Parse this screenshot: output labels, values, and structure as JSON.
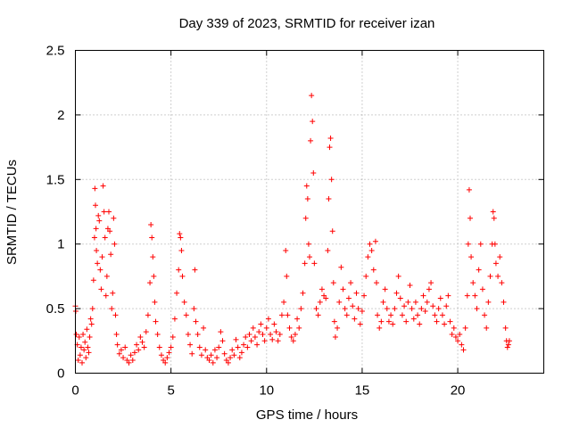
{
  "chart_data": {
    "type": "scatter",
    "title": "Day 339 of 2023, SRMTID for receiver izan",
    "xlabel": "GPS time / hours",
    "ylabel": "SRMTID / TECUs",
    "xlim": [
      0,
      24.5
    ],
    "ylim": [
      0,
      2.5
    ],
    "x_ticks": [
      0,
      5,
      10,
      15,
      20
    ],
    "x_tick_labels": [
      "0",
      "5",
      "10",
      "15",
      "20"
    ],
    "y_ticks": [
      0,
      0.5,
      1,
      1.5,
      2,
      2.5
    ],
    "y_tick_labels": [
      "0",
      "0.5",
      "1",
      "1.5",
      "2",
      "2.5"
    ],
    "grid": true,
    "marker": "+",
    "color": "#ff0000",
    "series": [
      {
        "name": "SRMTID",
        "points": [
          [
            0.0,
            0.52
          ],
          [
            0.02,
            0.48
          ],
          [
            0.05,
            0.3
          ],
          [
            0.1,
            0.22
          ],
          [
            0.15,
            0.1
          ],
          [
            0.2,
            0.28
          ],
          [
            0.25,
            0.14
          ],
          [
            0.3,
            0.2
          ],
          [
            0.35,
            0.08
          ],
          [
            0.4,
            0.3
          ],
          [
            0.45,
            0.18
          ],
          [
            0.5,
            0.24
          ],
          [
            0.55,
            0.12
          ],
          [
            0.6,
            0.34
          ],
          [
            0.65,
            0.2
          ],
          [
            0.7,
            0.16
          ],
          [
            0.75,
            0.28
          ],
          [
            0.8,
            0.42
          ],
          [
            0.85,
            0.38
          ],
          [
            0.9,
            0.5
          ],
          [
            0.95,
            0.72
          ],
          [
            1.0,
            1.05
          ],
          [
            1.02,
            1.43
          ],
          [
            1.05,
            1.3
          ],
          [
            1.08,
            1.12
          ],
          [
            1.1,
            0.95
          ],
          [
            1.15,
            0.85
          ],
          [
            1.2,
            1.22
          ],
          [
            1.25,
            1.18
          ],
          [
            1.3,
            0.8
          ],
          [
            1.35,
            0.65
          ],
          [
            1.4,
            0.9
          ],
          [
            1.45,
            1.45
          ],
          [
            1.5,
            1.25
          ],
          [
            1.55,
            1.05
          ],
          [
            1.6,
            0.6
          ],
          [
            1.65,
            0.75
          ],
          [
            1.7,
            1.12
          ],
          [
            1.75,
            1.25
          ],
          [
            1.8,
            1.1
          ],
          [
            1.85,
            0.92
          ],
          [
            1.9,
            0.5
          ],
          [
            1.95,
            0.62
          ],
          [
            2.0,
            1.2
          ],
          [
            2.05,
            1.0
          ],
          [
            2.1,
            0.45
          ],
          [
            2.15,
            0.3
          ],
          [
            2.2,
            0.22
          ],
          [
            2.3,
            0.15
          ],
          [
            2.4,
            0.18
          ],
          [
            2.5,
            0.12
          ],
          [
            2.6,
            0.2
          ],
          [
            2.7,
            0.1
          ],
          [
            2.8,
            0.08
          ],
          [
            2.9,
            0.14
          ],
          [
            3.0,
            0.1
          ],
          [
            3.1,
            0.16
          ],
          [
            3.2,
            0.22
          ],
          [
            3.3,
            0.18
          ],
          [
            3.4,
            0.28
          ],
          [
            3.5,
            0.24
          ],
          [
            3.6,
            0.2
          ],
          [
            3.7,
            0.32
          ],
          [
            3.8,
            0.45
          ],
          [
            3.9,
            0.7
          ],
          [
            3.95,
            1.15
          ],
          [
            4.0,
            1.05
          ],
          [
            4.05,
            0.9
          ],
          [
            4.1,
            0.75
          ],
          [
            4.15,
            0.55
          ],
          [
            4.2,
            0.4
          ],
          [
            4.3,
            0.3
          ],
          [
            4.4,
            0.2
          ],
          [
            4.5,
            0.14
          ],
          [
            4.6,
            0.1
          ],
          [
            4.7,
            0.08
          ],
          [
            4.8,
            0.12
          ],
          [
            4.9,
            0.16
          ],
          [
            5.0,
            0.2
          ],
          [
            5.1,
            0.28
          ],
          [
            5.2,
            0.42
          ],
          [
            5.3,
            0.62
          ],
          [
            5.4,
            0.8
          ],
          [
            5.45,
            1.08
          ],
          [
            5.5,
            1.05
          ],
          [
            5.55,
            0.95
          ],
          [
            5.6,
            0.75
          ],
          [
            5.7,
            0.55
          ],
          [
            5.8,
            0.45
          ],
          [
            5.9,
            0.3
          ],
          [
            6.0,
            0.22
          ],
          [
            6.1,
            0.15
          ],
          [
            6.2,
            0.5
          ],
          [
            6.25,
            0.8
          ],
          [
            6.3,
            0.4
          ],
          [
            6.4,
            0.3
          ],
          [
            6.5,
            0.2
          ],
          [
            6.6,
            0.14
          ],
          [
            6.7,
            0.35
          ],
          [
            6.8,
            0.18
          ],
          [
            6.9,
            0.12
          ],
          [
            7.0,
            0.1
          ],
          [
            7.1,
            0.14
          ],
          [
            7.2,
            0.08
          ],
          [
            7.3,
            0.18
          ],
          [
            7.4,
            0.12
          ],
          [
            7.5,
            0.2
          ],
          [
            7.6,
            0.32
          ],
          [
            7.7,
            0.25
          ],
          [
            7.8,
            0.15
          ],
          [
            7.9,
            0.1
          ],
          [
            8.0,
            0.08
          ],
          [
            8.1,
            0.12
          ],
          [
            8.2,
            0.18
          ],
          [
            8.3,
            0.14
          ],
          [
            8.4,
            0.26
          ],
          [
            8.5,
            0.2
          ],
          [
            8.6,
            0.12
          ],
          [
            8.7,
            0.16
          ],
          [
            8.8,
            0.22
          ],
          [
            8.9,
            0.28
          ],
          [
            9.0,
            0.2
          ],
          [
            9.1,
            0.3
          ],
          [
            9.2,
            0.25
          ],
          [
            9.3,
            0.35
          ],
          [
            9.4,
            0.28
          ],
          [
            9.5,
            0.22
          ],
          [
            9.6,
            0.32
          ],
          [
            9.7,
            0.38
          ],
          [
            9.8,
            0.3
          ],
          [
            9.9,
            0.25
          ],
          [
            10.0,
            0.35
          ],
          [
            10.1,
            0.42
          ],
          [
            10.2,
            0.3
          ],
          [
            10.3,
            0.26
          ],
          [
            10.4,
            0.38
          ],
          [
            10.5,
            0.32
          ],
          [
            10.6,
            0.25
          ],
          [
            10.7,
            0.3
          ],
          [
            10.8,
            0.45
          ],
          [
            10.9,
            0.55
          ],
          [
            11.0,
            0.95
          ],
          [
            11.05,
            0.75
          ],
          [
            11.1,
            0.45
          ],
          [
            11.2,
            0.35
          ],
          [
            11.3,
            0.28
          ],
          [
            11.4,
            0.25
          ],
          [
            11.5,
            0.3
          ],
          [
            11.6,
            0.42
          ],
          [
            11.7,
            0.35
          ],
          [
            11.8,
            0.5
          ],
          [
            11.9,
            0.62
          ],
          [
            12.0,
            0.85
          ],
          [
            12.05,
            1.2
          ],
          [
            12.1,
            1.45
          ],
          [
            12.15,
            1.35
          ],
          [
            12.2,
            1.0
          ],
          [
            12.25,
            0.9
          ],
          [
            12.3,
            1.8
          ],
          [
            12.35,
            2.15
          ],
          [
            12.4,
            1.95
          ],
          [
            12.45,
            1.55
          ],
          [
            12.5,
            0.85
          ],
          [
            12.6,
            0.5
          ],
          [
            12.7,
            0.45
          ],
          [
            12.8,
            0.55
          ],
          [
            12.9,
            0.65
          ],
          [
            13.0,
            0.6
          ],
          [
            13.1,
            0.58
          ],
          [
            13.2,
            0.95
          ],
          [
            13.25,
            1.35
          ],
          [
            13.3,
            1.75
          ],
          [
            13.35,
            1.82
          ],
          [
            13.4,
            1.5
          ],
          [
            13.45,
            1.1
          ],
          [
            13.5,
            0.7
          ],
          [
            13.55,
            0.4
          ],
          [
            13.6,
            0.28
          ],
          [
            13.7,
            0.35
          ],
          [
            13.8,
            0.55
          ],
          [
            13.9,
            0.82
          ],
          [
            14.0,
            0.65
          ],
          [
            14.1,
            0.5
          ],
          [
            14.2,
            0.45
          ],
          [
            14.3,
            0.58
          ],
          [
            14.4,
            0.7
          ],
          [
            14.5,
            0.52
          ],
          [
            14.6,
            0.42
          ],
          [
            14.7,
            0.62
          ],
          [
            14.8,
            0.5
          ],
          [
            14.9,
            0.38
          ],
          [
            15.0,
            0.48
          ],
          [
            15.1,
            0.6
          ],
          [
            15.2,
            0.75
          ],
          [
            15.3,
            0.9
          ],
          [
            15.4,
            1.0
          ],
          [
            15.5,
            0.95
          ],
          [
            15.6,
            0.8
          ],
          [
            15.7,
            1.02
          ],
          [
            15.75,
            0.7
          ],
          [
            15.8,
            0.45
          ],
          [
            15.9,
            0.35
          ],
          [
            16.0,
            0.4
          ],
          [
            16.1,
            0.55
          ],
          [
            16.2,
            0.65
          ],
          [
            16.3,
            0.5
          ],
          [
            16.4,
            0.4
          ],
          [
            16.5,
            0.45
          ],
          [
            16.6,
            0.38
          ],
          [
            16.7,
            0.5
          ],
          [
            16.8,
            0.62
          ],
          [
            16.9,
            0.75
          ],
          [
            17.0,
            0.58
          ],
          [
            17.1,
            0.45
          ],
          [
            17.2,
            0.52
          ],
          [
            17.3,
            0.4
          ],
          [
            17.4,
            0.55
          ],
          [
            17.5,
            0.68
          ],
          [
            17.6,
            0.5
          ],
          [
            17.7,
            0.42
          ],
          [
            17.8,
            0.55
          ],
          [
            17.9,
            0.45
          ],
          [
            18.0,
            0.38
          ],
          [
            18.1,
            0.5
          ],
          [
            18.2,
            0.6
          ],
          [
            18.3,
            0.48
          ],
          [
            18.4,
            0.55
          ],
          [
            18.5,
            0.65
          ],
          [
            18.6,
            0.7
          ],
          [
            18.7,
            0.52
          ],
          [
            18.8,
            0.45
          ],
          [
            18.9,
            0.4
          ],
          [
            19.0,
            0.5
          ],
          [
            19.1,
            0.58
          ],
          [
            19.2,
            0.45
          ],
          [
            19.3,
            0.38
          ],
          [
            19.4,
            0.52
          ],
          [
            19.5,
            0.6
          ],
          [
            19.6,
            0.4
          ],
          [
            19.7,
            0.3
          ],
          [
            19.8,
            0.35
          ],
          [
            19.9,
            0.28
          ],
          [
            20.0,
            0.25
          ],
          [
            20.1,
            0.3
          ],
          [
            20.2,
            0.22
          ],
          [
            20.3,
            0.18
          ],
          [
            20.4,
            0.35
          ],
          [
            20.5,
            0.6
          ],
          [
            20.55,
            1.0
          ],
          [
            20.6,
            1.42
          ],
          [
            20.65,
            1.2
          ],
          [
            20.7,
            0.9
          ],
          [
            20.8,
            0.7
          ],
          [
            20.9,
            0.6
          ],
          [
            21.0,
            0.5
          ],
          [
            21.1,
            0.8
          ],
          [
            21.2,
            1.0
          ],
          [
            21.3,
            0.65
          ],
          [
            21.4,
            0.45
          ],
          [
            21.5,
            0.35
          ],
          [
            21.6,
            0.55
          ],
          [
            21.7,
            0.75
          ],
          [
            21.8,
            1.0
          ],
          [
            21.85,
            1.25
          ],
          [
            21.9,
            1.2
          ],
          [
            21.95,
            1.0
          ],
          [
            22.0,
            0.85
          ],
          [
            22.1,
            0.75
          ],
          [
            22.2,
            0.9
          ],
          [
            22.3,
            0.7
          ],
          [
            22.4,
            0.55
          ],
          [
            22.5,
            0.35
          ],
          [
            22.55,
            0.25
          ],
          [
            22.6,
            0.2
          ],
          [
            22.65,
            0.22
          ],
          [
            22.7,
            0.25
          ]
        ]
      }
    ]
  }
}
